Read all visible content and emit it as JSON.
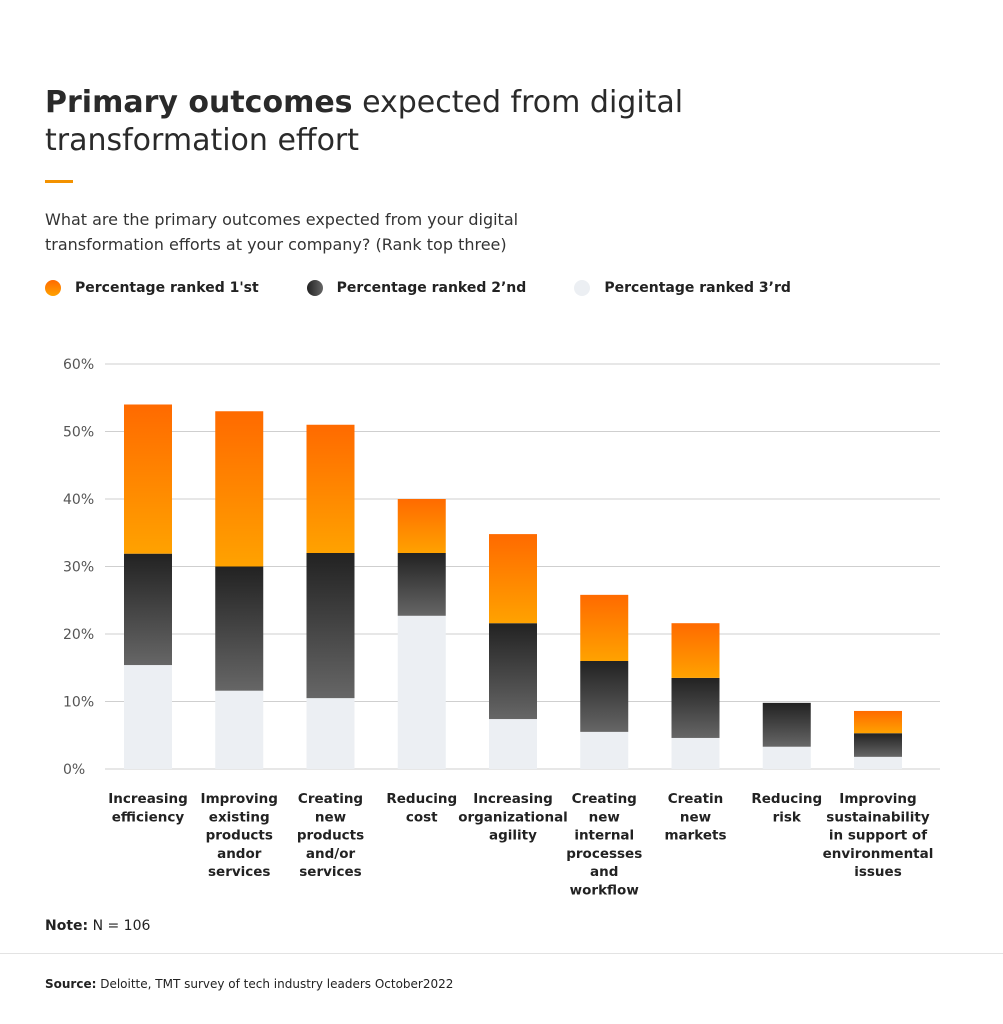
{
  "title": {
    "bold": "Primary outcomes",
    "rest": " expected from digital transformation effort"
  },
  "subtitle": "What are the primary outcomes expected from your digital transformation efforts at your company? (Rank top three)",
  "note": {
    "label": "Note:",
    "text": " N = 106"
  },
  "source": {
    "label": "Source:",
    "text": " Deloitte, TMT survey of tech industry leaders October2022"
  },
  "colors": {
    "first": [
      "#ff6a00",
      "#ffa200"
    ],
    "second": [
      "#222222",
      "#666666"
    ],
    "third": "#eceff3",
    "accent": "#f39200"
  },
  "chart_data": {
    "type": "bar",
    "stacked": true,
    "ylim": [
      0,
      60
    ],
    "yticks": [
      "0%",
      "10%",
      "20%",
      "30%",
      "40%",
      "50%",
      "60%"
    ],
    "grid": true,
    "legend_position": "top-left",
    "categories": [
      "Increasing efficiency",
      "Improving existing products andor services",
      "Creating new products and/or services",
      "Reducing cost",
      "Increasing organizational agility",
      "Creating new internal processes and workflow",
      "Creatin new markets",
      "Reducing risk",
      "Improving sustainability in support of environmental issues"
    ],
    "category_lines": [
      [
        "Increasing",
        "efficiency"
      ],
      [
        "Improving",
        "existing",
        "products",
        "andor",
        "services"
      ],
      [
        "Creating",
        "new",
        "products",
        "and/or",
        "services"
      ],
      [
        "Reducing",
        "cost"
      ],
      [
        "Increasing",
        "organizational",
        "agility"
      ],
      [
        "Creating",
        "new",
        "internal",
        "processes",
        "and",
        "workflow"
      ],
      [
        "Creatin",
        "new",
        "markets"
      ],
      [
        "Reducing",
        "risk"
      ],
      [
        "Improving",
        "sustainability",
        "in support of",
        "environmental",
        "issues"
      ]
    ],
    "series": [
      {
        "name": "Percentage ranked 3’rd",
        "values": [
          15.4,
          11.6,
          10.5,
          22.7,
          7.4,
          5.5,
          4.6,
          3.3,
          1.8
        ]
      },
      {
        "name": "Percentage ranked 2’nd",
        "values": [
          16.5,
          18.4,
          21.5,
          9.3,
          14.2,
          10.5,
          8.9,
          6.5,
          3.5
        ]
      },
      {
        "name": "Percentage ranked 1'st",
        "values": [
          22.1,
          23.0,
          19.0,
          8.0,
          13.2,
          9.8,
          8.1,
          0,
          3.3
        ]
      }
    ]
  }
}
